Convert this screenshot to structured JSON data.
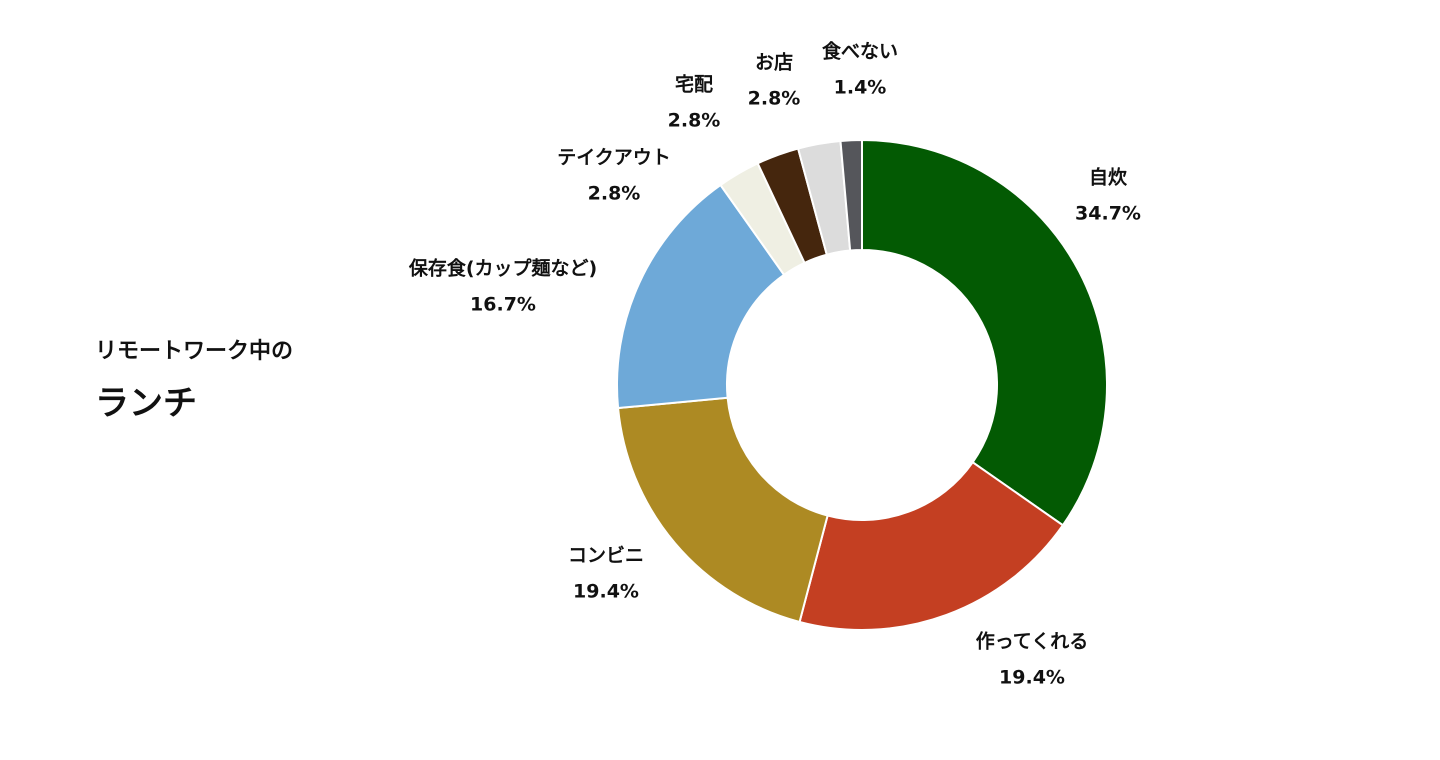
{
  "chart_data": {
    "type": "donut",
    "subtitle": "リモートワーク中の",
    "title": "ランチ",
    "categories": [
      "自炊",
      "作ってくれる",
      "コンビニ",
      "保存食(カップ麺など)",
      "テイクアウト",
      "宅配",
      "お店",
      "食べない"
    ],
    "values": [
      34.7,
      19.4,
      19.4,
      16.7,
      2.8,
      2.8,
      2.8,
      1.4
    ],
    "value_labels": [
      "34.7%",
      "19.4%",
      "19.4%",
      "16.7%",
      "2.8%",
      "2.8%",
      "2.8%",
      "1.4%"
    ],
    "colors": [
      "#035a03",
      "#c43f22",
      "#ad8a23",
      "#6ea9d8",
      "#efefe3",
      "#45260d",
      "#dcdcdc",
      "#55565b"
    ]
  }
}
